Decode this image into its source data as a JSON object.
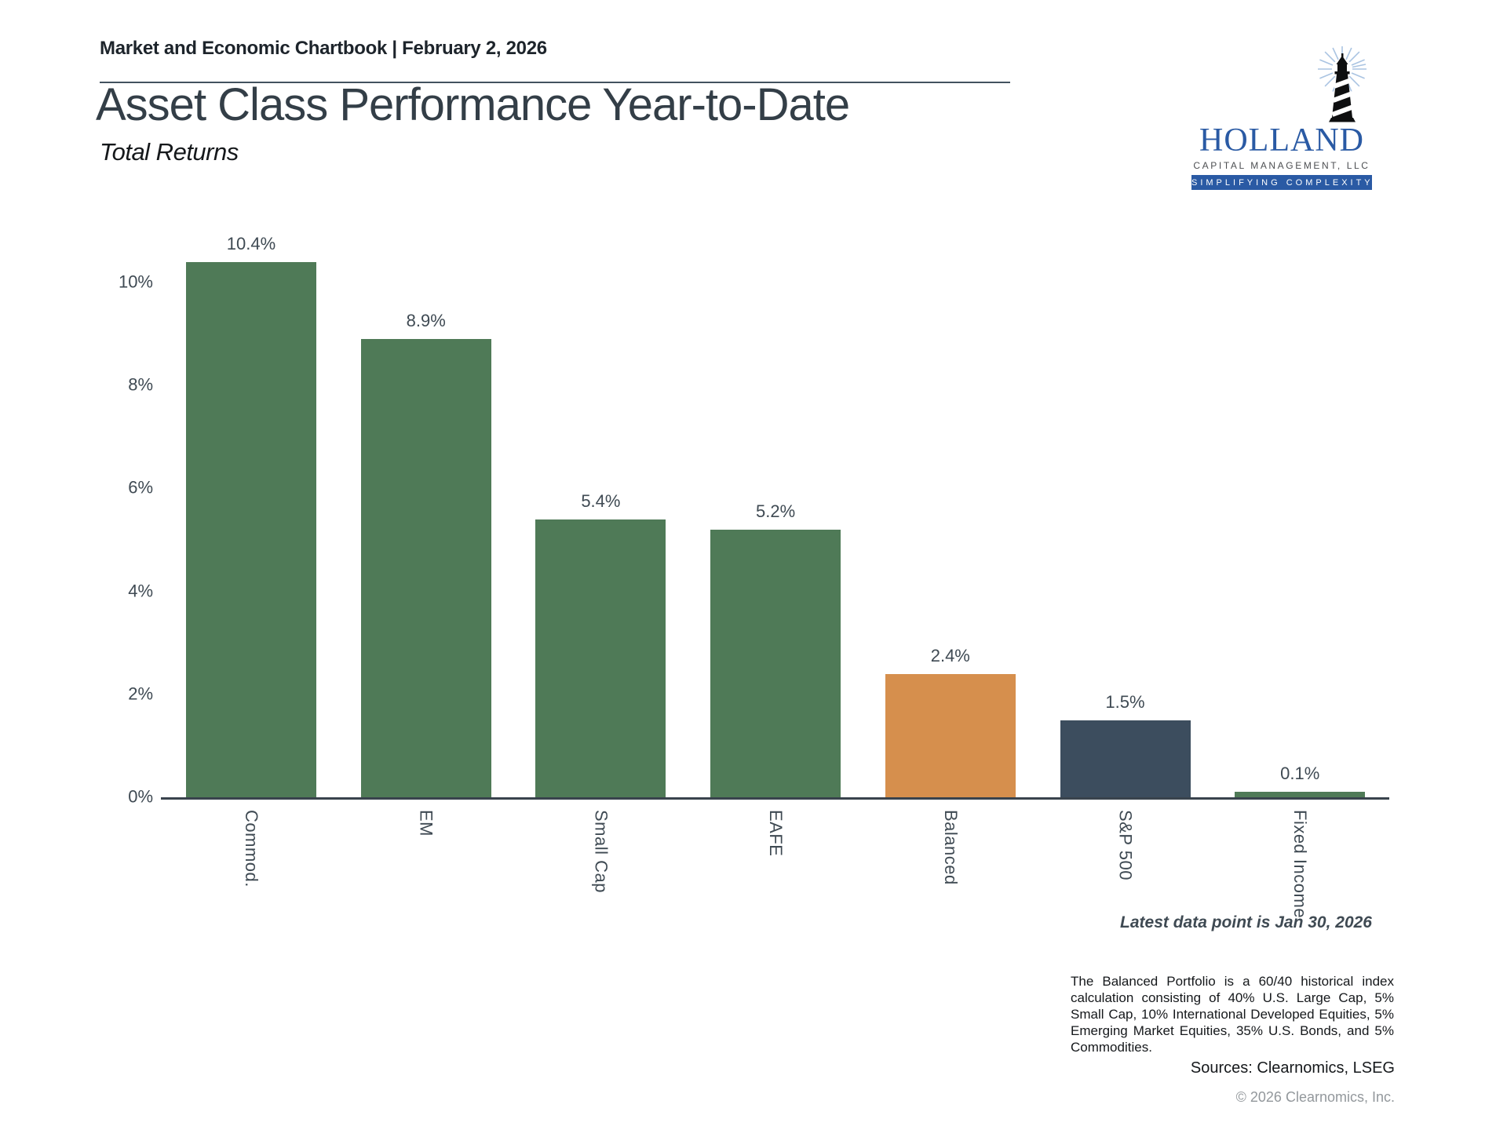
{
  "header": {
    "title": "Market and Economic Chartbook | February 2, 2026"
  },
  "page": {
    "title": "Asset Class Performance Year-to-Date",
    "subtitle": "Total Returns"
  },
  "logo": {
    "name": "HOLLAND",
    "subname": "CAPITAL MANAGEMENT, LLC",
    "tagline": "SIMPLIFYING COMPLEXITY",
    "brand_blue": "#2a5aa4"
  },
  "chart_data": {
    "type": "bar",
    "title": "Asset Class Performance Year-to-Date",
    "subtitle": "Total Returns",
    "categories": [
      "Commod.",
      "EM",
      "Small Cap",
      "EAFE",
      "Balanced",
      "S&P 500",
      "Fixed Income"
    ],
    "values": [
      10.4,
      8.9,
      5.4,
      5.2,
      2.4,
      1.5,
      0.1
    ],
    "value_labels": [
      "10.4%",
      "8.9%",
      "5.4%",
      "5.2%",
      "2.4%",
      "1.5%",
      "0.1%"
    ],
    "bar_colors": [
      "#4f7a57",
      "#4f7a57",
      "#4f7a57",
      "#4f7a57",
      "#d68f4d",
      "#3c4d5e",
      "#4f7a57"
    ],
    "xlabel": "",
    "ylabel": "",
    "y_ticks": [
      0,
      2,
      4,
      6,
      8,
      10
    ],
    "y_tick_labels": [
      "0%",
      "2%",
      "4%",
      "6%",
      "8%",
      "10%"
    ],
    "ylim": [
      0,
      10.5
    ],
    "grid": false,
    "legend": false,
    "colors": {
      "positive_green": "#4f7a57",
      "balanced_orange": "#d68f4d",
      "sp500_navy": "#3c4d5e",
      "axis": "#39434d"
    }
  },
  "annotations": {
    "latest": "Latest data point is Jan 30, 2026"
  },
  "footnote": {
    "text": "The Balanced Portfolio is a 60/40 historical index calculation consisting of 40% U.S. Large Cap, 5% Small Cap, 10% International Developed Equities, 5% Emerging Market Equities, 35% U.S. Bonds, and 5% Commodities.",
    "sources": "Sources: Clearnomics, LSEG",
    "copyright": "© 2026 Clearnomics, Inc."
  }
}
